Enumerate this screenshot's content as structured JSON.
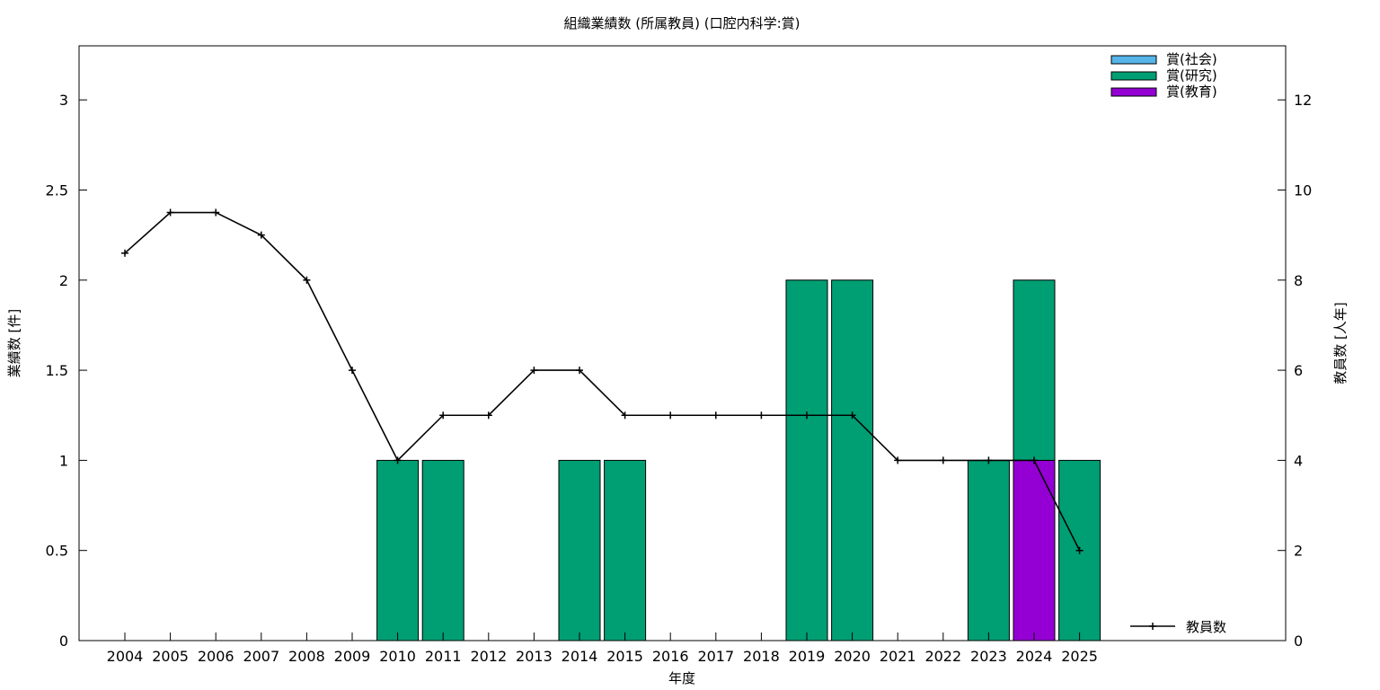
{
  "chart_data": {
    "type": "bar",
    "title": "組織業績数 (所属教員) (口腔内科学:賞)",
    "xlabel": "年度",
    "ylabel": "業績数 [件]",
    "y2label": "教員数 [人年]",
    "categories": [
      "2004",
      "2005",
      "2006",
      "2007",
      "2008",
      "2009",
      "2010",
      "2011",
      "2012",
      "2013",
      "2014",
      "2015",
      "2016",
      "2017",
      "2018",
      "2019",
      "2020",
      "2021",
      "2022",
      "2023",
      "2024",
      "2025"
    ],
    "stacked": true,
    "series": [
      {
        "name": "賞(社会)",
        "color": "#56b4e9",
        "values": [
          0,
          0,
          0,
          0,
          0,
          0,
          0,
          0,
          0,
          0,
          0,
          0,
          0,
          0,
          0,
          0,
          0,
          0,
          0,
          0,
          0,
          0
        ]
      },
      {
        "name": "賞(研究)",
        "color": "#009e73",
        "values": [
          0,
          0,
          0,
          0,
          0,
          0,
          1,
          1,
          0,
          0,
          1,
          1,
          0,
          0,
          0,
          2,
          2,
          0,
          0,
          1,
          1,
          1
        ]
      },
      {
        "name": "賞(教育)",
        "color": "#9400d3",
        "values": [
          0,
          0,
          0,
          0,
          0,
          0,
          0,
          0,
          0,
          0,
          0,
          0,
          0,
          0,
          0,
          0,
          0,
          0,
          0,
          0,
          1,
          0
        ]
      }
    ],
    "stack_order": [
      "賞(教育)",
      "賞(研究)",
      "賞(社会)"
    ],
    "line_series": {
      "name": "教員数",
      "color": "#000000",
      "axis": "y2",
      "values": [
        8.6,
        9.5,
        9.5,
        9,
        8,
        6,
        4,
        5,
        5,
        6,
        6,
        5,
        5,
        5,
        5,
        5,
        5,
        4,
        4,
        4,
        4,
        2
      ]
    },
    "ylim": [
      0,
      3.3
    ],
    "y2lim": [
      0,
      13.2
    ],
    "yticks": [
      "0",
      "0.5",
      "1",
      "1.5",
      "2",
      "2.5",
      "3"
    ],
    "y2ticks": [
      "0",
      "2",
      "4",
      "6",
      "8",
      "10",
      "12"
    ],
    "grid": false,
    "legend_position": "top-right"
  }
}
